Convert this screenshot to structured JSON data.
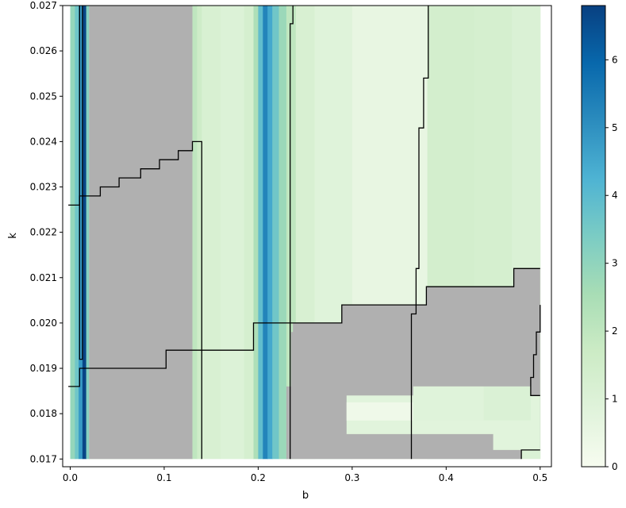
{
  "chart_data": {
    "type": "heatmap",
    "xlabel": "b",
    "ylabel": "k",
    "xlim": [
      -0.008,
      0.512
    ],
    "ylim": [
      0.01683,
      0.027
    ],
    "xticks": [
      {
        "value": 0.0,
        "label": "0.0"
      },
      {
        "value": 0.1,
        "label": "0.1"
      },
      {
        "value": 0.2,
        "label": "0.2"
      },
      {
        "value": 0.3,
        "label": "0.3"
      },
      {
        "value": 0.4,
        "label": "0.4"
      },
      {
        "value": 0.5,
        "label": "0.5"
      }
    ],
    "yticks": [
      {
        "value": 0.017,
        "label": "0.017"
      },
      {
        "value": 0.018,
        "label": "0.018"
      },
      {
        "value": 0.019,
        "label": "0.019"
      },
      {
        "value": 0.02,
        "label": "0.020"
      },
      {
        "value": 0.021,
        "label": "0.021"
      },
      {
        "value": 0.022,
        "label": "0.022"
      },
      {
        "value": 0.023,
        "label": "0.023"
      },
      {
        "value": 0.024,
        "label": "0.024"
      },
      {
        "value": 0.025,
        "label": "0.025"
      },
      {
        "value": 0.026,
        "label": "0.026"
      },
      {
        "value": 0.027,
        "label": "0.027"
      }
    ],
    "colorbar": {
      "min": 0,
      "max": 6.8,
      "colormap": "GnBu",
      "stops": [
        "#f7fcf0",
        "#e0f3db",
        "#ccebc5",
        "#a8ddb5",
        "#7bccc4",
        "#4eb3d3",
        "#2b8cbe",
        "#0868ac",
        "#084081"
      ],
      "ticks": [
        {
          "value": 0,
          "label": "0"
        },
        {
          "value": 1,
          "label": "1"
        },
        {
          "value": 2,
          "label": "2"
        },
        {
          "value": 3,
          "label": "3"
        },
        {
          "value": 4,
          "label": "4"
        },
        {
          "value": 5,
          "label": "5"
        },
        {
          "value": 6,
          "label": "6"
        }
      ]
    },
    "no_data_color": "#b0b0b0",
    "field_bands": [
      {
        "b0": 0.0,
        "b1": 0.005,
        "value": 2.9
      },
      {
        "b0": 0.005,
        "b1": 0.009,
        "value": 3.6
      },
      {
        "b0": 0.009,
        "b1": 0.013,
        "value": 4.8
      },
      {
        "b0": 0.013,
        "b1": 0.017,
        "value": 6.7
      },
      {
        "b0": 0.017,
        "b1": 0.02,
        "value": 3.2
      },
      {
        "b0": 0.02,
        "b1": 0.13,
        "value": 1.5
      },
      {
        "b0": 0.13,
        "b1": 0.135,
        "value": 2.0
      },
      {
        "b0": 0.135,
        "b1": 0.14,
        "value": 1.6
      },
      {
        "b0": 0.14,
        "b1": 0.16,
        "value": 1.2
      },
      {
        "b0": 0.16,
        "b1": 0.185,
        "value": 1.0
      },
      {
        "b0": 0.185,
        "b1": 0.195,
        "value": 1.3
      },
      {
        "b0": 0.195,
        "b1": 0.2,
        "value": 2.4
      },
      {
        "b0": 0.2,
        "b1": 0.205,
        "value": 3.9
      },
      {
        "b0": 0.205,
        "b1": 0.21,
        "value": 5.3
      },
      {
        "b0": 0.21,
        "b1": 0.215,
        "value": 4.5
      },
      {
        "b0": 0.215,
        "b1": 0.222,
        "value": 3.6
      },
      {
        "b0": 0.222,
        "b1": 0.23,
        "value": 2.8
      },
      {
        "b0": 0.23,
        "b1": 0.24,
        "value": 2.0
      },
      {
        "b0": 0.24,
        "b1": 0.26,
        "value": 1.2
      },
      {
        "b0": 0.26,
        "b1": 0.3,
        "value": 0.9
      },
      {
        "b0": 0.3,
        "b1": 0.38,
        "value": 0.55
      },
      {
        "b0": 0.38,
        "b1": 0.43,
        "value": 1.4
      },
      {
        "b0": 0.43,
        "b1": 0.47,
        "value": 1.3
      },
      {
        "b0": 0.47,
        "b1": 0.5,
        "value": 1.1
      }
    ],
    "overlay_patches": [
      {
        "b0": 0.294,
        "b1": 0.365,
        "k0": 0.01785,
        "k1": 0.01825,
        "value": 0.3
      },
      {
        "b0": 0.365,
        "b1": 0.44,
        "k0": 0.01785,
        "k1": 0.0186,
        "value": 0.9
      },
      {
        "b0": 0.44,
        "b1": 0.49,
        "k0": 0.01785,
        "k1": 0.0186,
        "value": 1.1
      }
    ],
    "no_data_regions": [
      {
        "name": "left-gray-region",
        "points": [
          [
            0.02,
            0.017
          ],
          [
            0.13,
            0.017
          ],
          [
            0.13,
            0.027
          ],
          [
            0.02,
            0.027
          ]
        ]
      },
      {
        "name": "lower-gray-region",
        "points": [
          [
            0.23,
            0.017
          ],
          [
            0.48,
            0.017
          ],
          [
            0.48,
            0.0172
          ],
          [
            0.5,
            0.0172
          ],
          [
            0.5,
            0.0212
          ],
          [
            0.472,
            0.0212
          ],
          [
            0.472,
            0.0208
          ],
          [
            0.379,
            0.0208
          ],
          [
            0.379,
            0.0204
          ],
          [
            0.289,
            0.0204
          ],
          [
            0.289,
            0.02
          ],
          [
            0.237,
            0.02
          ],
          [
            0.237,
            0.0198
          ],
          [
            0.235,
            0.0198
          ],
          [
            0.235,
            0.0186
          ],
          [
            0.23,
            0.0186
          ]
        ]
      }
    ],
    "no_data_holes": [
      {
        "points": [
          [
            0.294,
            0.0184
          ],
          [
            0.365,
            0.0184
          ],
          [
            0.365,
            0.0186
          ],
          [
            0.49,
            0.0186
          ],
          [
            0.49,
            0.0184
          ],
          [
            0.5,
            0.0184
          ],
          [
            0.5,
            0.0172
          ],
          [
            0.45,
            0.0172
          ],
          [
            0.45,
            0.01755
          ],
          [
            0.294,
            0.01755
          ]
        ]
      }
    ],
    "contour_lines": [
      {
        "name": "contour-line-1",
        "points": [
          [
            0.01,
            0.027
          ],
          [
            0.01,
            0.0192
          ],
          [
            0.013,
            0.0192
          ],
          [
            0.013,
            0.027
          ]
        ]
      },
      {
        "name": "contour-line-2",
        "points": [
          [
            -0.002,
            0.0226
          ],
          [
            0.01,
            0.0226
          ],
          [
            0.01,
            0.0228
          ],
          [
            0.032,
            0.0228
          ],
          [
            0.032,
            0.023
          ],
          [
            0.052,
            0.023
          ],
          [
            0.052,
            0.0232
          ],
          [
            0.075,
            0.0232
          ],
          [
            0.075,
            0.0234
          ],
          [
            0.095,
            0.0234
          ],
          [
            0.095,
            0.0236
          ],
          [
            0.115,
            0.0236
          ],
          [
            0.115,
            0.0238
          ],
          [
            0.13,
            0.0238
          ],
          [
            0.13,
            0.024
          ],
          [
            0.14,
            0.024
          ],
          [
            0.14,
            0.017
          ]
        ]
      },
      {
        "name": "contour-line-3",
        "points": [
          [
            -0.002,
            0.0186
          ],
          [
            0.01,
            0.0186
          ],
          [
            0.01,
            0.019
          ],
          [
            0.102,
            0.019
          ],
          [
            0.102,
            0.0194
          ],
          [
            0.195,
            0.0194
          ],
          [
            0.195,
            0.02
          ],
          [
            0.289,
            0.02
          ],
          [
            0.289,
            0.0204
          ],
          [
            0.379,
            0.0204
          ],
          [
            0.379,
            0.0208
          ],
          [
            0.472,
            0.0208
          ],
          [
            0.472,
            0.0212
          ],
          [
            0.5,
            0.0212
          ]
        ]
      },
      {
        "name": "contour-line-4",
        "points": [
          [
            0.237,
            0.027
          ],
          [
            0.237,
            0.0266
          ],
          [
            0.234,
            0.0266
          ],
          [
            0.234,
            0.017
          ]
        ]
      },
      {
        "name": "contour-line-5",
        "points": [
          [
            0.381,
            0.027
          ],
          [
            0.381,
            0.0254
          ],
          [
            0.376,
            0.0254
          ],
          [
            0.376,
            0.0243
          ],
          [
            0.371,
            0.0243
          ],
          [
            0.371,
            0.0212
          ],
          [
            0.368,
            0.0212
          ],
          [
            0.368,
            0.0202
          ],
          [
            0.363,
            0.0202
          ],
          [
            0.363,
            0.017
          ]
        ]
      },
      {
        "name": "contour-line-6",
        "points": [
          [
            0.48,
            0.017
          ],
          [
            0.48,
            0.0172
          ],
          [
            0.5,
            0.0172
          ]
        ]
      },
      {
        "name": "contour-line-7",
        "points": [
          [
            0.5,
            0.0184
          ],
          [
            0.49,
            0.0184
          ],
          [
            0.49,
            0.0188
          ],
          [
            0.493,
            0.0188
          ],
          [
            0.493,
            0.0193
          ],
          [
            0.496,
            0.0193
          ],
          [
            0.496,
            0.0198
          ],
          [
            0.5,
            0.0198
          ],
          [
            0.5,
            0.0204
          ]
        ]
      }
    ]
  }
}
